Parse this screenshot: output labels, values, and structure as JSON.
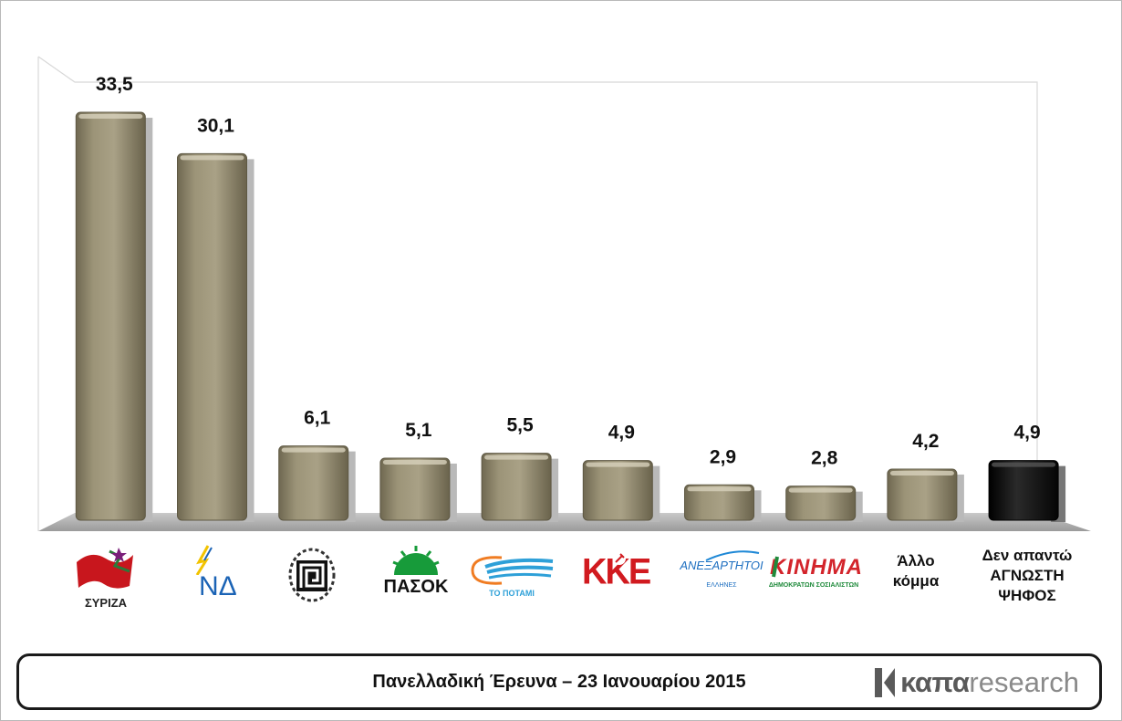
{
  "chart_data": {
    "type": "bar",
    "categories": [
      "ΣΥΡΙΖΑ",
      "ΝΔ",
      "ΧΑ",
      "ΠΑΣΟΚ",
      "ΤΟ ΠΟΤΑΜΙ",
      "ΚΚΕ",
      "ΑΝΕΞΑΡΤΗΤΟΙ ΕΛΛΗΝΕΣ",
      "ΚΙΝΗΜΑ",
      "Άλλο κόμμα",
      "Δεν απαντώ ΑΓΝΩΣΤΗ ΨΗΦΟΣ"
    ],
    "values": [
      33.5,
      30.1,
      6.1,
      5.1,
      5.5,
      4.9,
      2.9,
      2.8,
      4.2,
      4.9
    ],
    "value_labels": [
      "33,5",
      "30,1",
      "6,1",
      "5,1",
      "5,5",
      "4,9",
      "2,9",
      "2,8",
      "4,2",
      "4,9"
    ],
    "bar_colors": [
      "#8a826a",
      "#8a826a",
      "#8a826a",
      "#8a826a",
      "#8a826a",
      "#8a826a",
      "#8a826a",
      "#8a826a",
      "#8a826a",
      "#111111"
    ],
    "ylim": [
      0,
      36
    ],
    "grid": false,
    "legend": "none"
  },
  "logos": {
    "syriza_text": "ΣΥΡΙΖΑ",
    "nd_text": "ΝΔ",
    "pasok_text": "ΠΑΣΟΚ",
    "potami_text": "ΤΟ ΠΟΤΑΜΙ",
    "kke_text": "ΚΚΕ",
    "anel_text": "ΑΝΕΞΑΡΤΗΤΟΙ",
    "anel_sub": "ΕΛΛΗΝΕΣ",
    "kinima_text": "ΚΙΝΗΜΑ",
    "kinima_sub": "ΔΗΜΟΚΡΑΤΩΝ ΣΟΣΙΑΛΙΣΤΩΝ"
  },
  "category_labels": {
    "other_line1": "Άλλο",
    "other_line2": "κόμμα",
    "noanswer_line1": "Δεν απαντώ",
    "noanswer_line2": "ΑΓΝΩΣΤΗ",
    "noanswer_line3": "ΨΗΦΟΣ"
  },
  "footer": {
    "title": "Πανελλαδική Έρευνα – 23 Ιανουαρίου 2015",
    "brand_bold": "καπα",
    "brand_light": "research"
  }
}
